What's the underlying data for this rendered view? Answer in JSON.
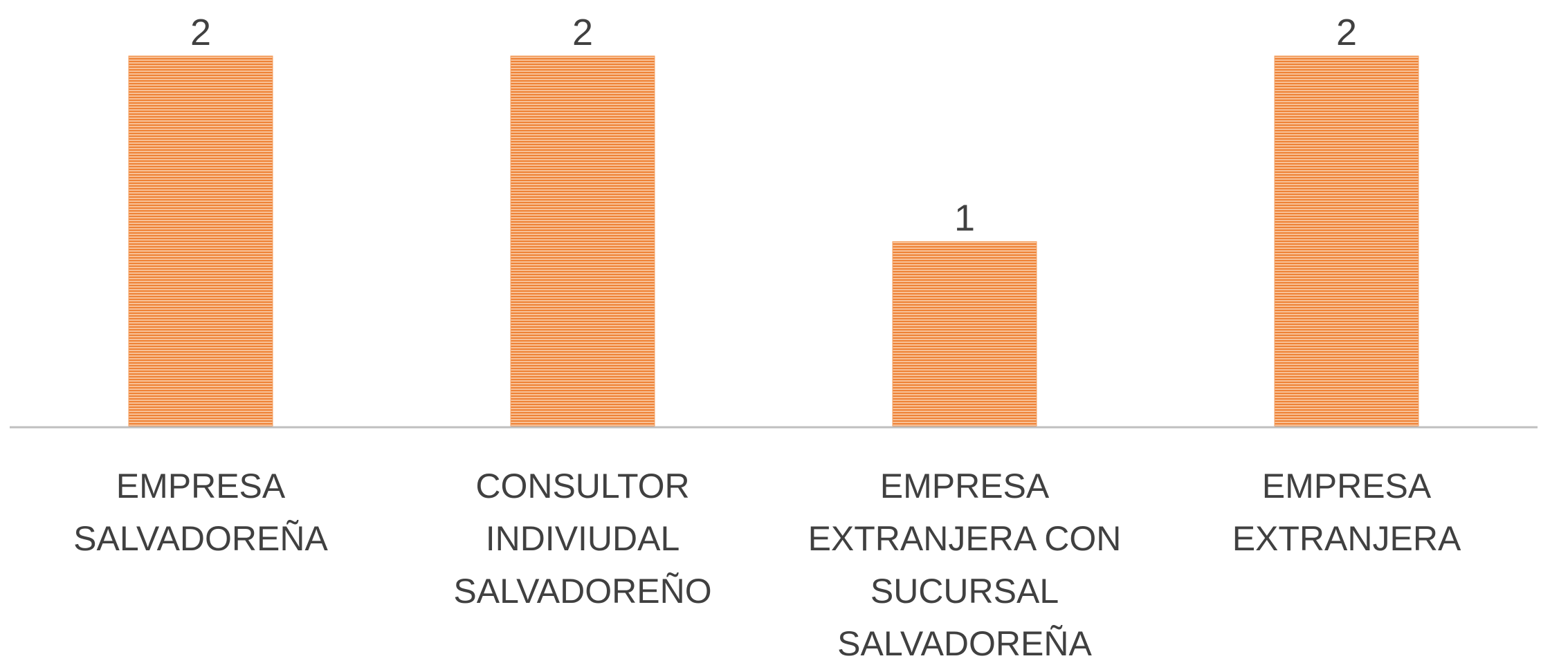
{
  "chart_data": {
    "type": "bar",
    "categories": [
      "EMPRESA SALVADOREÑA",
      "CONSULTOR INDIVIUDAL SALVADOREÑO",
      "EMPRESA EXTRANJERA CON SUCURSAL SALVADOREÑA",
      "EMPRESA EXTRANJERA"
    ],
    "values": [
      2,
      2,
      1,
      2
    ],
    "color": "#f4a062",
    "ylim": [
      0,
      2
    ],
    "grid": false
  }
}
